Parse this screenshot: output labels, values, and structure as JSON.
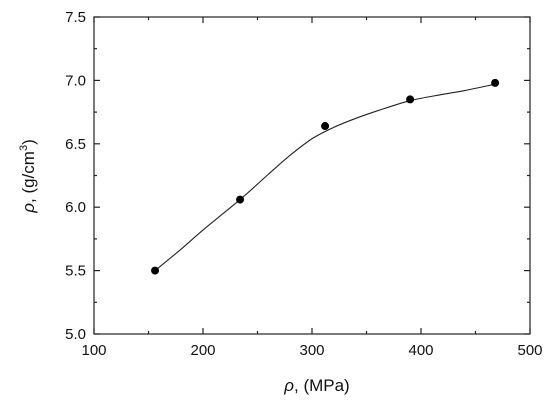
{
  "chart_data": {
    "type": "scatter",
    "title": "",
    "xlabel": {
      "symbol": "ρ",
      "rest": ", (MPa)"
    },
    "ylabel": {
      "symbol": "ρ",
      "rest": ", (g/cm",
      "sup": "3",
      "close": ")"
    },
    "xlim": [
      100,
      500
    ],
    "ylim": [
      5.0,
      7.5
    ],
    "x_ticks": [
      100,
      200,
      300,
      400,
      500
    ],
    "x_tick_labels": [
      "100",
      "200",
      "300",
      "400",
      "500"
    ],
    "y_ticks": [
      5.0,
      5.5,
      6.0,
      6.5,
      7.0,
      7.5
    ],
    "y_tick_labels": [
      "5.0",
      "5.5",
      "6.0",
      "6.5",
      "7.0",
      "7.5"
    ],
    "grid": false,
    "legend": "none",
    "series": [
      {
        "x": [
          156,
          234,
          312,
          390,
          468
        ],
        "y": [
          5.5,
          6.06,
          6.64,
          6.85,
          6.98
        ],
        "marker": "circle",
        "color": "#000000"
      }
    ],
    "fit_curve": {
      "x": [
        156,
        180,
        200,
        234,
        260,
        280,
        300,
        320,
        340,
        360,
        390,
        420,
        440,
        468
      ],
      "y": [
        5.5,
        5.67,
        5.82,
        6.06,
        6.26,
        6.41,
        6.54,
        6.63,
        6.7,
        6.76,
        6.84,
        6.89,
        6.92,
        6.97
      ],
      "color": "#222222"
    }
  }
}
